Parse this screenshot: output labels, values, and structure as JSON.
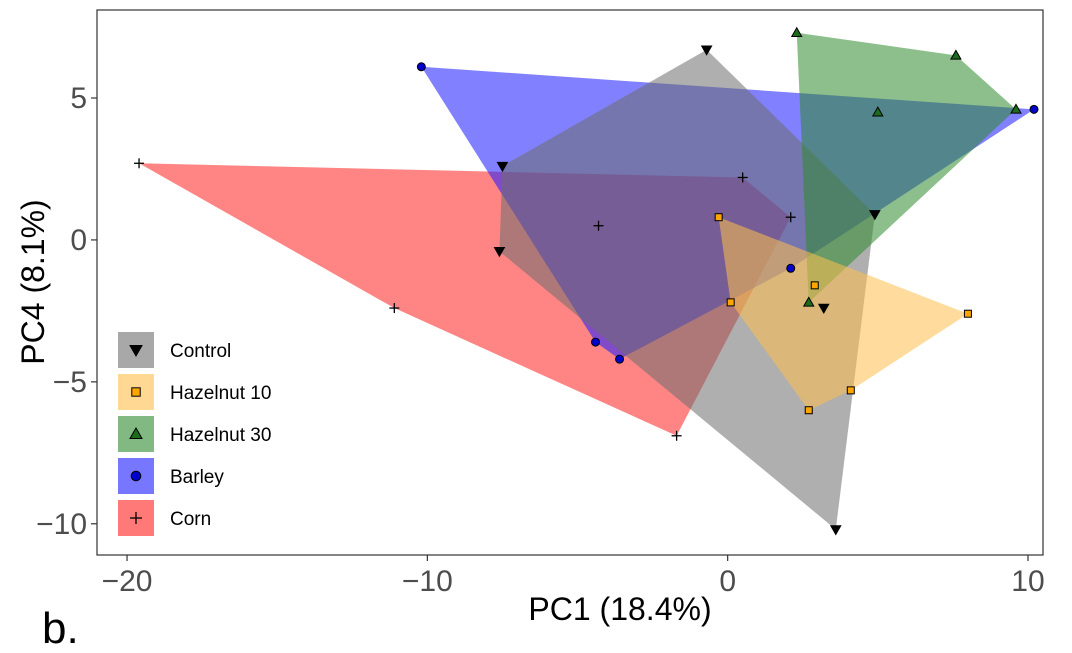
{
  "panel_label": "b.",
  "chart_data": {
    "type": "scatter",
    "xlabel": "PC1 (18.4%)",
    "ylabel": "PC4 (8.1%)",
    "xlim": [
      -21,
      10.5
    ],
    "ylim": [
      -11.1,
      8.1
    ],
    "xticks": [
      -20,
      -10,
      0,
      10
    ],
    "yticks": [
      -10,
      -5,
      0,
      5
    ],
    "x_tick_labels": [
      "−20",
      "−10",
      "0",
      "10"
    ],
    "y_tick_labels": [
      "−10",
      "−5",
      "0",
      "5"
    ],
    "grid": false,
    "legend_position": "bottom-left",
    "series": [
      {
        "name": "Control",
        "marker": "triangle-down",
        "fill": "#6e6e6e",
        "marker_fill": "#000000",
        "points": [
          [
            -0.7,
            6.7
          ],
          [
            4.9,
            0.9
          ],
          [
            3.2,
            -2.4
          ],
          [
            3.6,
            -10.2
          ],
          [
            -7.6,
            -0.4
          ],
          [
            -7.5,
            2.6
          ]
        ],
        "hull": [
          [
            -0.7,
            6.7
          ],
          [
            4.9,
            0.9
          ],
          [
            3.6,
            -10.2
          ],
          [
            -7.6,
            -0.4
          ],
          [
            -7.5,
            2.6
          ]
        ]
      },
      {
        "name": "Hazelnut 10",
        "marker": "square",
        "fill": "#ffc04d",
        "marker_fill": "#ffa500",
        "points": [
          [
            -0.3,
            0.8
          ],
          [
            8.0,
            -2.6
          ],
          [
            2.9,
            -1.6
          ],
          [
            4.1,
            -5.3
          ],
          [
            2.7,
            -6.0
          ],
          [
            0.1,
            -2.2
          ]
        ],
        "hull": [
          [
            -0.3,
            0.8
          ],
          [
            8.0,
            -2.6
          ],
          [
            4.1,
            -5.3
          ],
          [
            2.7,
            -6.0
          ],
          [
            0.1,
            -2.2
          ]
        ]
      },
      {
        "name": "Hazelnut 30",
        "marker": "triangle-up",
        "fill": "#2e8b2e",
        "marker_fill": "#1e6b1e",
        "points": [
          [
            2.3,
            7.3
          ],
          [
            7.6,
            6.5
          ],
          [
            9.6,
            4.6
          ],
          [
            5.0,
            4.5
          ],
          [
            2.7,
            -2.2
          ]
        ],
        "hull": [
          [
            2.3,
            7.3
          ],
          [
            7.6,
            6.5
          ],
          [
            9.6,
            4.6
          ],
          [
            2.7,
            -2.2
          ]
        ]
      },
      {
        "name": "Barley",
        "marker": "circle",
        "fill": "#1a1aff",
        "marker_fill": "#0000cd",
        "points": [
          [
            -10.2,
            6.1
          ],
          [
            10.2,
            4.6
          ],
          [
            2.1,
            -1.0
          ],
          [
            -3.6,
            -4.2
          ],
          [
            -4.4,
            -3.6
          ]
        ],
        "hull": [
          [
            -10.2,
            6.1
          ],
          [
            10.2,
            4.6
          ],
          [
            2.1,
            -1.0
          ],
          [
            -3.6,
            -4.2
          ],
          [
            -4.4,
            -3.6
          ]
        ]
      },
      {
        "name": "Corn",
        "marker": "plus",
        "fill": "#ff2020",
        "marker_fill": "#000000",
        "points": [
          [
            -19.6,
            2.7
          ],
          [
            0.5,
            2.2
          ],
          [
            2.1,
            0.8
          ],
          [
            -4.3,
            0.5
          ],
          [
            -11.1,
            -2.4
          ],
          [
            -1.7,
            -6.9
          ]
        ],
        "hull": [
          [
            -19.6,
            2.7
          ],
          [
            0.5,
            2.2
          ],
          [
            2.1,
            0.8
          ],
          [
            -1.7,
            -6.9
          ],
          [
            -11.1,
            -2.4
          ]
        ]
      }
    ]
  },
  "colors": {
    "panel_border": "#333333",
    "tick": "#4d4d4d"
  }
}
